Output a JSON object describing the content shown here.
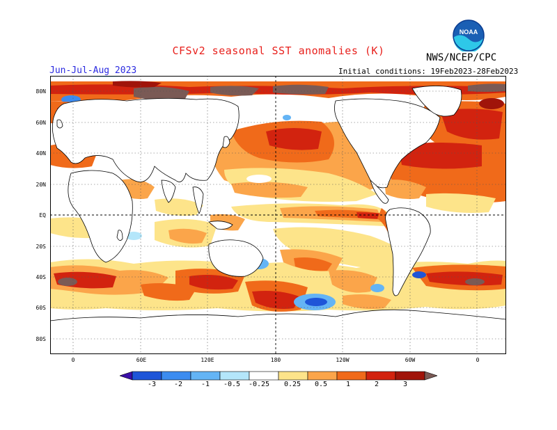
{
  "header": {
    "title": "CFSv2 seasonal SST anomalies (K)",
    "agency": "NWS/NCEP/CPC",
    "season": "Jun-Jul-Aug 2023",
    "initial_conditions": "Initial conditions: 19Feb2023-28Feb2023",
    "logo_text": "NOAA"
  },
  "map": {
    "lat_labels": [
      "80N",
      "60N",
      "40N",
      "20N",
      "EQ",
      "20S",
      "40S",
      "60S",
      "80S"
    ],
    "lon_labels": [
      "0",
      "60E",
      "120E",
      "180",
      "120W",
      "60W",
      "0"
    ]
  },
  "colorbar": {
    "levels": [
      "-3",
      "-2",
      "-1",
      "-0.5",
      "-0.25",
      "0.25",
      "0.5",
      "1",
      "2",
      "3"
    ],
    "colors": [
      "#3b0fa8",
      "#1e55d8",
      "#3c8cf0",
      "#64b4f5",
      "#b4e6fa",
      "#ffffff",
      "#fde48a",
      "#fba54a",
      "#f06a1a",
      "#d2230f",
      "#a0140a",
      "#7a5a55"
    ]
  }
}
